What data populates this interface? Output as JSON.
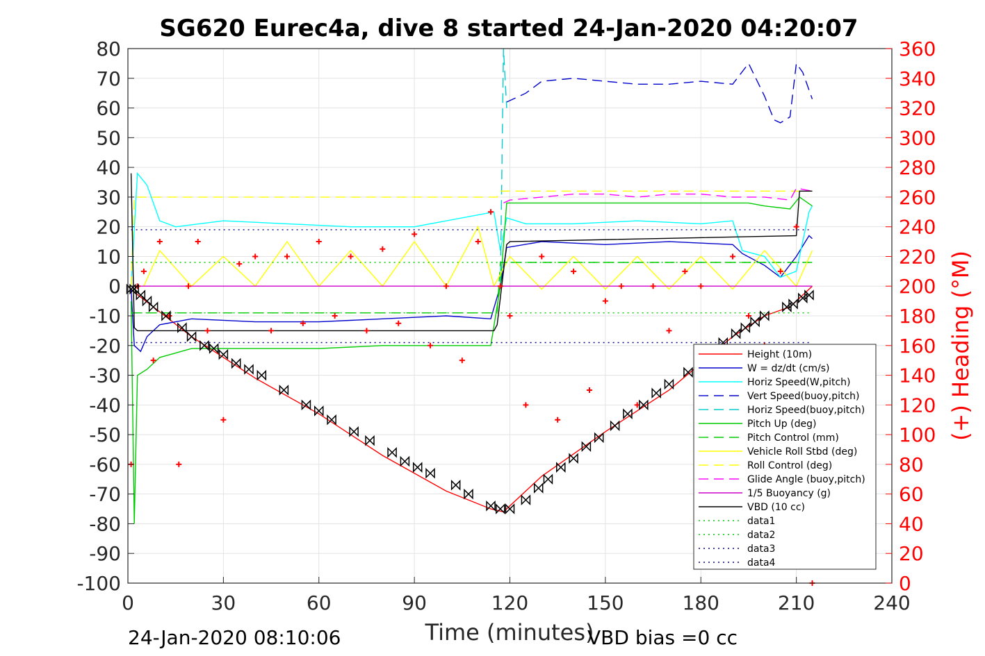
{
  "chart_data": {
    "type": "line",
    "title": "SG620 Eurec4a, dive 8 started 24-Jan-2020 04:20:07",
    "xlabel": "Time (minutes)",
    "ylabel_right": "(+) Heading (°M)",
    "xlim": [
      0,
      240
    ],
    "ylim_left": [
      -100,
      80
    ],
    "ylim_right": [
      0,
      360
    ],
    "x_ticks": [
      "0",
      "30",
      "60",
      "90",
      "120",
      "150",
      "180",
      "210",
      "240"
    ],
    "y_ticks_left": [
      "80",
      "70",
      "60",
      "50",
      "40",
      "30",
      "20",
      "10",
      "0",
      "-10",
      "-20",
      "-30",
      "-40",
      "-50",
      "-60",
      "-70",
      "-80",
      "-90",
      "-100"
    ],
    "y_ticks_right": [
      "360",
      "340",
      "320",
      "300",
      "280",
      "260",
      "240",
      "220",
      "200",
      "180",
      "160",
      "140",
      "120",
      "100",
      "80",
      "60",
      "40",
      "20",
      "0"
    ],
    "grid": true,
    "legend_position": "bottom-right",
    "footer_left": "24-Jan-2020 08:10:06",
    "footer_right": "VBD bias =0 cc",
    "series": [
      {
        "name": "Height (10m)",
        "color": "#ff0000",
        "style": "solid",
        "x": [
          0,
          2,
          20,
          40,
          60,
          80,
          100,
          114,
          118,
          130,
          150,
          170,
          190,
          200,
          208,
          215
        ],
        "y": [
          0,
          -2,
          -17,
          -31,
          -43,
          -57,
          -69,
          -75,
          -76,
          -64,
          -49,
          -35,
          -17,
          -10,
          -7,
          0
        ]
      },
      {
        "name": "W = dz/dt (cm/s)",
        "color": "#0000cc",
        "style": "solid",
        "x": [
          1,
          2,
          4,
          6,
          10,
          20,
          40,
          60,
          80,
          100,
          114,
          117,
          119,
          130,
          150,
          170,
          190,
          193,
          200,
          205,
          210,
          214,
          215
        ],
        "y": [
          -1,
          -20,
          -22,
          -17,
          -13,
          -11,
          -12,
          -12,
          -11,
          -10,
          -11,
          0,
          13,
          15,
          14,
          15,
          14,
          11,
          7,
          3,
          10,
          17,
          16
        ]
      },
      {
        "name": "Horiz Speed(W,pitch)",
        "color": "#00ffff",
        "style": "solid",
        "x": [
          1,
          3,
          6,
          10,
          15,
          30,
          50,
          70,
          90,
          110,
          115,
          117,
          119,
          125,
          140,
          160,
          180,
          190,
          193,
          200,
          205,
          210,
          214,
          215
        ],
        "y": [
          0,
          38,
          34,
          22,
          20,
          22,
          21,
          20,
          20,
          24,
          25,
          12,
          23,
          21,
          21,
          22,
          21,
          22,
          12,
          10,
          3,
          5,
          25,
          27
        ]
      },
      {
        "name": "Vert Speed(buoy,pitch)",
        "color": "#0000cc",
        "style": "dashed",
        "x": [
          119,
          125,
          130,
          140,
          150,
          160,
          170,
          180,
          190,
          195,
          200,
          203,
          205,
          208,
          210,
          212,
          215
        ],
        "y": [
          62,
          65,
          69,
          70,
          69,
          68,
          68,
          69,
          68,
          75,
          64,
          56,
          55,
          57,
          75,
          72,
          63
        ]
      },
      {
        "name": "Horiz Speed(buoy,pitch)",
        "color": "#00cccc",
        "style": "dashed",
        "x": [
          117,
          118,
          119
        ],
        "y": [
          0,
          80,
          60
        ]
      },
      {
        "name": "Pitch Up (deg)",
        "color": "#00cc00",
        "style": "solid",
        "x": [
          1,
          2,
          3,
          6,
          10,
          20,
          40,
          60,
          80,
          100,
          114,
          117,
          119,
          140,
          160,
          180,
          195,
          200,
          208,
          211,
          215
        ],
        "y": [
          -5,
          -80,
          -30,
          -28,
          -24,
          -21,
          -21,
          -21,
          -20,
          -20,
          -20,
          0,
          28,
          28,
          28,
          28,
          28,
          27,
          26,
          30,
          27
        ]
      },
      {
        "name": "Pitch Control (mm)",
        "color": "#00cc00",
        "style": "dashed",
        "x": [
          1,
          2,
          116,
          117,
          208,
          209,
          215
        ],
        "y": [
          -9,
          -9,
          -9,
          8,
          8,
          8,
          8
        ]
      },
      {
        "name": "Vehicle Roll Stbd (deg)",
        "color": "#ffff00",
        "style": "solid",
        "x": [
          5,
          10,
          20,
          30,
          40,
          50,
          60,
          70,
          80,
          90,
          100,
          110,
          115,
          120,
          130,
          140,
          150,
          160,
          170,
          180,
          190,
          200,
          210,
          215
        ],
        "y": [
          0,
          12,
          0,
          10,
          0,
          15,
          0,
          12,
          0,
          15,
          0,
          20,
          0,
          10,
          -1,
          10,
          -1,
          10,
          -1,
          10,
          -1,
          12,
          0,
          12
        ]
      },
      {
        "name": "Roll Control (deg)",
        "color": "#ffff00",
        "style": "dashed",
        "x": [
          1,
          2,
          20,
          40,
          60,
          80,
          100,
          116,
          117,
          140,
          160,
          180,
          200,
          210,
          215
        ],
        "y": [
          0,
          30,
          30,
          30,
          30,
          30,
          30,
          30,
          32,
          32,
          32,
          32,
          32,
          32,
          32
        ]
      },
      {
        "name": "Glide Angle (buoy,pitch)",
        "color": "#ff00ff",
        "style": "dashed",
        "x": [
          118,
          120,
          130,
          140,
          150,
          160,
          170,
          180,
          190,
          200,
          208,
          210,
          215
        ],
        "y": [
          28,
          29,
          30,
          31,
          31,
          30,
          31,
          31,
          30,
          30,
          29,
          33,
          32
        ]
      },
      {
        "name": "1/5 Buoyancy (g)",
        "color": "#cc00cc",
        "style": "solid",
        "x": [
          1,
          2,
          116,
          117,
          208,
          209,
          215
        ],
        "y": [
          0,
          0,
          0,
          0,
          0,
          0,
          0
        ]
      },
      {
        "name": "VBD (10 cc)",
        "color": "#000000",
        "style": "solid",
        "x": [
          1,
          2,
          3,
          115,
          116,
          119,
          120,
          210,
          211,
          215
        ],
        "y": [
          38,
          -14,
          -15,
          -15,
          -13,
          14,
          15,
          17,
          32,
          32
        ]
      },
      {
        "name": "data1",
        "color": "#00cc00",
        "style": "dotted",
        "x": [
          1,
          215
        ],
        "y": [
          -9,
          -9
        ]
      },
      {
        "name": "data2",
        "color": "#00cc00",
        "style": "dotted",
        "x": [
          1,
          215
        ],
        "y": [
          8,
          8
        ]
      },
      {
        "name": "data3",
        "color": "#000080",
        "style": "dotted",
        "x": [
          1,
          215
        ],
        "y": [
          19,
          19
        ]
      },
      {
        "name": "data4",
        "color": "#000080",
        "style": "dotted",
        "x": [
          1,
          215
        ],
        "y": [
          -19,
          -19
        ]
      }
    ],
    "heading_samples": {
      "color": "#ff0000",
      "axis": "right",
      "x": [
        1,
        3,
        5,
        8,
        10,
        13,
        16,
        19,
        22,
        25,
        30,
        35,
        40,
        45,
        50,
        55,
        60,
        65,
        70,
        75,
        80,
        85,
        90,
        95,
        100,
        105,
        110,
        114,
        117,
        120,
        125,
        130,
        135,
        140,
        145,
        150,
        155,
        160,
        165,
        170,
        175,
        180,
        185,
        190,
        195,
        200,
        205,
        210,
        213,
        215
      ],
      "y": [
        80,
        200,
        210,
        150,
        230,
        180,
        80,
        200,
        230,
        170,
        110,
        215,
        220,
        170,
        220,
        175,
        230,
        180,
        220,
        170,
        225,
        175,
        235,
        160,
        200,
        150,
        230,
        250,
        200,
        180,
        120,
        220,
        110,
        210,
        130,
        190,
        200,
        120,
        200,
        170,
        210,
        200,
        100,
        220,
        180,
        160,
        210,
        240,
        60,
        0
      ]
    },
    "depth_markers": {
      "x": [
        1,
        2,
        4,
        6,
        8,
        12,
        17,
        20,
        24,
        27,
        30,
        34,
        38,
        42,
        49,
        56,
        60,
        64,
        71,
        76,
        83,
        87,
        91,
        95,
        103,
        107,
        114,
        117,
        120,
        125,
        129,
        132,
        136,
        140,
        144,
        148,
        153,
        157,
        162,
        166,
        170,
        176,
        180,
        184,
        187,
        191,
        194,
        197,
        200,
        207,
        209,
        212,
        214
      ],
      "y": [
        -1,
        -1,
        -3,
        -5,
        -7,
        -10,
        -14,
        -17,
        -20,
        -21,
        -23,
        -26,
        -28,
        -30,
        -35,
        -40,
        -42,
        -45,
        -49,
        -52,
        -56,
        -59,
        -61,
        -63,
        -67,
        -70,
        -74,
        -75,
        -75,
        -72,
        -68,
        -65,
        -61,
        -58,
        -54,
        -51,
        -47,
        -43,
        -40,
        -36,
        -33,
        -29,
        -26,
        -23,
        -19,
        -16,
        -14,
        -12,
        -10,
        -7,
        -6,
        -4,
        -3
      ]
    }
  }
}
